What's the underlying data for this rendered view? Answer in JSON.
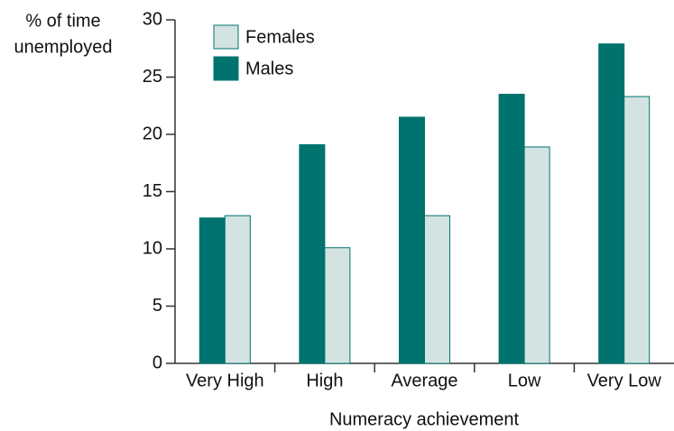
{
  "chart_data": {
    "type": "bar",
    "y_label": [
      "% of time",
      "unemployed"
    ],
    "x_label": "Numeracy achievement",
    "categories": [
      "Very High",
      "High",
      "Average",
      "Low",
      "Very Low"
    ],
    "series": [
      {
        "name": "Males",
        "color": "#00736e",
        "values": [
          12.7,
          19.1,
          21.5,
          23.5,
          27.9
        ]
      },
      {
        "name": "Females",
        "color": "#d3e3e1",
        "values": [
          12.9,
          10.1,
          12.9,
          18.9,
          23.3
        ]
      }
    ],
    "ylim": [
      0,
      30
    ],
    "yticks": [
      0,
      5,
      10,
      15,
      20,
      25,
      30
    ],
    "legend": "top-left"
  }
}
